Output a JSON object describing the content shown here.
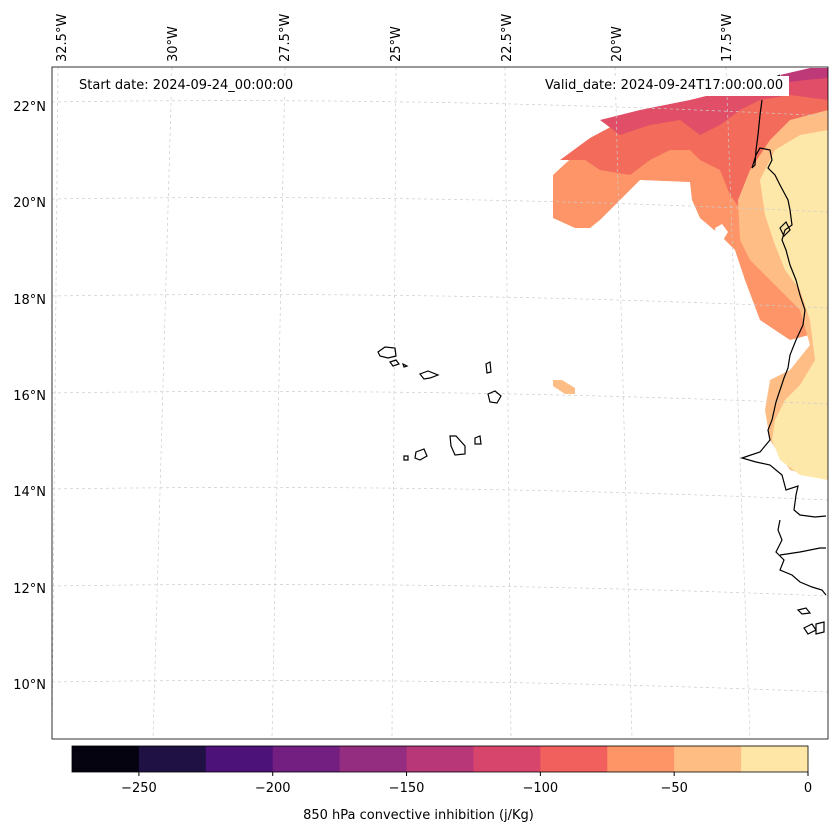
{
  "map": {
    "start_date": "Start date: 2024-09-24_00:00:00",
    "valid_date": "Valid_date: 2024-09-24T17:00:00.00",
    "lon_labels": [
      "32.5°W",
      "30°W",
      "27.5°W",
      "25°W",
      "22.5°W",
      "20°W",
      "17.5°W"
    ],
    "lat_labels": [
      "22°N",
      "20°N",
      "18°N",
      "16°N",
      "14°N",
      "12°N",
      "10°N"
    ],
    "coastline_color": "#000000",
    "gridline_color": "#cccccc",
    "gridlines": true,
    "field_colors": {
      "-100_-75": "#f26b5b",
      "-75_-50": "#fd9568",
      "-50_-25": "#febd84",
      "-25_0": "#fde7a9",
      "-125_-100": "#e04e67",
      "-150_-125": "#bd3977"
    }
  },
  "colorbar": {
    "label": "850 hPa convective inhibition (j/Kg)",
    "ticks": [
      "−250",
      "−200",
      "−150",
      "−100",
      "−50",
      "0"
    ],
    "levels": [
      -275,
      -250,
      -225,
      -200,
      -175,
      -150,
      -125,
      -100,
      -75,
      -50,
      -25,
      0
    ],
    "colors": [
      "#04030f",
      "#1f1143",
      "#4d117a",
      "#721f81",
      "#942c80",
      "#b73779",
      "#d8456c",
      "#f1605d",
      "#fd9567",
      "#febd82",
      "#fde6a6"
    ]
  }
}
